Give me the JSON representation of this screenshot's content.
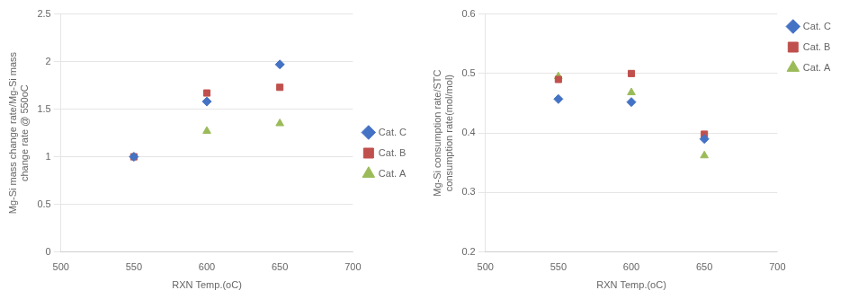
{
  "chart_data": [
    {
      "type": "scatter",
      "xlabel": "RXN Temp.(oC)",
      "ylabel": "Mg-Si mass change rate/Mg-Si mass\nchange rate @ 550oC",
      "xlim": [
        500,
        700
      ],
      "xticks": [
        500,
        550,
        600,
        650,
        700
      ],
      "ylim": [
        0,
        2.5
      ],
      "yticks": [
        0,
        0.5,
        1.0,
        1.5,
        2.0,
        2.5
      ],
      "grid": "y",
      "legend": "right",
      "series": [
        {
          "name": "Cat. C",
          "color": "#4472C4",
          "marker": "diamond",
          "x": [
            550,
            600,
            650
          ],
          "values": [
            1.0,
            1.58,
            1.97
          ]
        },
        {
          "name": "Cat. B",
          "color": "#C0504D",
          "marker": "square",
          "x": [
            550,
            600,
            650
          ],
          "values": [
            1.0,
            1.67,
            1.73
          ]
        },
        {
          "name": "Cat. A",
          "color": "#9BBB59",
          "marker": "triangle",
          "x": [
            600,
            650
          ],
          "values": [
            1.27,
            1.35
          ]
        }
      ]
    },
    {
      "type": "scatter",
      "xlabel": "RXN Temp.(oC)",
      "ylabel": "Mg-Si consumption rate/STC\nconsumption rate(mol/mol)",
      "xlim": [
        500,
        700
      ],
      "xticks": [
        500,
        550,
        600,
        650,
        700
      ],
      "ylim": [
        0.2,
        0.6
      ],
      "yticks": [
        0.2,
        0.3,
        0.4,
        0.5,
        0.6
      ],
      "grid": "y",
      "legend": "upper right",
      "series": [
        {
          "name": "Cat. C",
          "color": "#4472C4",
          "marker": "diamond",
          "x": [
            550,
            600,
            650
          ],
          "values": [
            0.457,
            0.452,
            0.39
          ]
        },
        {
          "name": "Cat. B",
          "color": "#C0504D",
          "marker": "square",
          "x": [
            550,
            600,
            650
          ],
          "values": [
            0.49,
            0.5,
            0.398
          ]
        },
        {
          "name": "Cat. A",
          "color": "#9BBB59",
          "marker": "triangle",
          "x": [
            550,
            600,
            650
          ],
          "values": [
            0.495,
            0.468,
            0.362
          ]
        }
      ]
    }
  ]
}
